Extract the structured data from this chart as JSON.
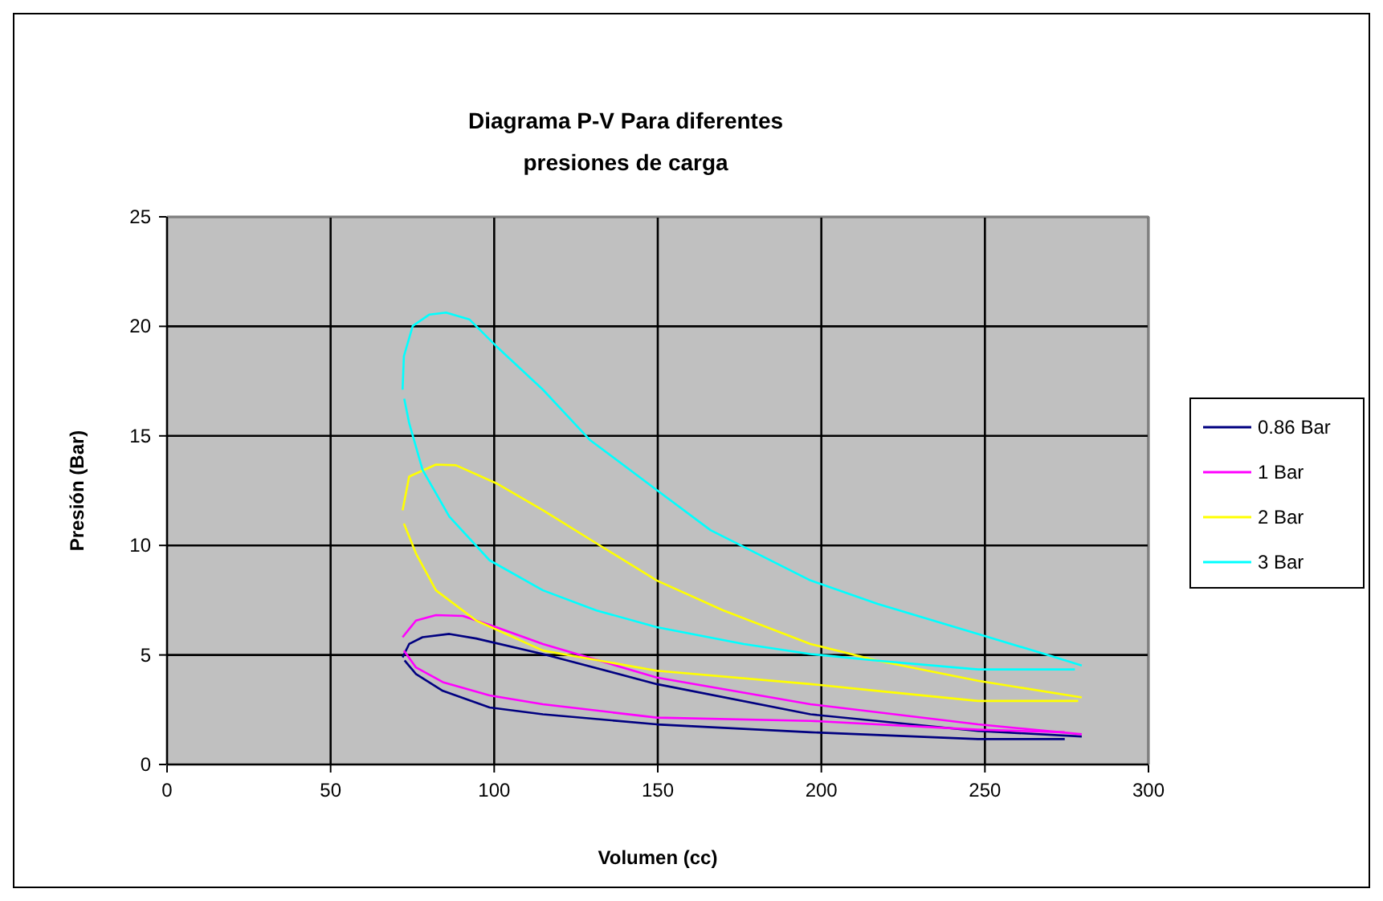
{
  "chart_data": {
    "type": "line",
    "title": "Diagrama P-V Para diferentes presiones de carga",
    "xlabel": "Volumen (cc)",
    "ylabel": "Presión (Bar)",
    "xlim": [
      0,
      300
    ],
    "xticks": [
      0,
      50,
      100,
      150,
      200,
      250,
      300
    ],
    "ylim": [
      0,
      25
    ],
    "yticks": [
      0,
      5,
      10,
      15,
      20,
      25
    ],
    "grid": true,
    "legend": "right",
    "marker": "none",
    "line_style": "solid",
    "series": [
      {
        "name": "0.86 Bar",
        "color": "#000080",
        "x": [
          72.0,
          74.0,
          78.1,
          86.3,
          94.5,
          114.9,
          149.7,
          196.7,
          247.9,
          279.6
        ],
        "values": [
          4.89,
          5.5,
          5.81,
          5.96,
          5.75,
          5.04,
          3.67,
          2.29,
          1.53,
          1.28
        ]
      },
      {
        "color": "#000080",
        "x": [
          72.6,
          76.1,
          84.3,
          98.6,
          114.9,
          149.7,
          196.7,
          247.9,
          274.4
        ],
        "values": [
          4.75,
          4.13,
          3.36,
          2.6,
          2.29,
          1.83,
          1.47,
          1.16,
          1.16
        ]
      },
      {
        "name": "1 Bar",
        "color": "#ff00ff",
        "x": [
          72.0,
          76.1,
          82.2,
          90.4,
          100.6,
          114.9,
          149.7,
          196.7,
          247.9,
          279.6
        ],
        "values": [
          5.81,
          6.57,
          6.82,
          6.78,
          6.27,
          5.5,
          3.97,
          2.75,
          1.83,
          1.38
        ]
      },
      {
        "color": "#ff00ff",
        "x": [
          72.4,
          76.1,
          84.3,
          98.6,
          114.9,
          149.7,
          196.7,
          247.9,
          274.4
        ],
        "values": [
          5.2,
          4.43,
          3.76,
          3.15,
          2.75,
          2.14,
          1.99,
          1.59,
          1.47
        ]
      },
      {
        "name": "2 Bar",
        "color": "#ffff00",
        "x": [
          72.0,
          74.0,
          82.2,
          88.3,
          100.6,
          114.9,
          131.3,
          149.7,
          170.1,
          196.7,
          217.2,
          247.9,
          279.6
        ],
        "values": [
          11.6,
          13.14,
          13.69,
          13.66,
          12.84,
          11.61,
          10.09,
          8.4,
          7.03,
          5.5,
          4.74,
          3.82,
          3.06
        ]
      },
      {
        "color": "#ffff00",
        "x": [
          72.4,
          76.1,
          82.2,
          94.5,
          114.9,
          149.7,
          196.7,
          217.2,
          247.9,
          278.5
        ],
        "values": [
          11.0,
          9.63,
          7.95,
          6.57,
          5.2,
          4.28,
          3.67,
          3.36,
          2.9,
          2.9
        ]
      },
      {
        "name": "3 Bar",
        "color": "#00ffff",
        "x": [
          72.0,
          72.4,
          75.1,
          80.2,
          85.3,
          92.4,
          100.6,
          114.9,
          129.2,
          149.7,
          166.1,
          196.7,
          217.2,
          247.9,
          268.3,
          279.6
        ],
        "values": [
          17.11,
          18.64,
          20.02,
          20.54,
          20.63,
          20.32,
          19.1,
          17.11,
          14.82,
          12.53,
          10.7,
          8.4,
          7.33,
          5.96,
          5.04,
          4.52
        ]
      },
      {
        "color": "#00ffff",
        "x": [
          72.5,
          74.0,
          78.1,
          86.3,
          98.6,
          114.9,
          131.3,
          149.7,
          176.3,
          196.7,
          217.2,
          247.9,
          277.5
        ],
        "values": [
          16.7,
          15.59,
          13.45,
          11.31,
          9.32,
          7.95,
          7.03,
          6.27,
          5.5,
          5.04,
          4.74,
          4.34,
          4.34
        ]
      }
    ]
  }
}
